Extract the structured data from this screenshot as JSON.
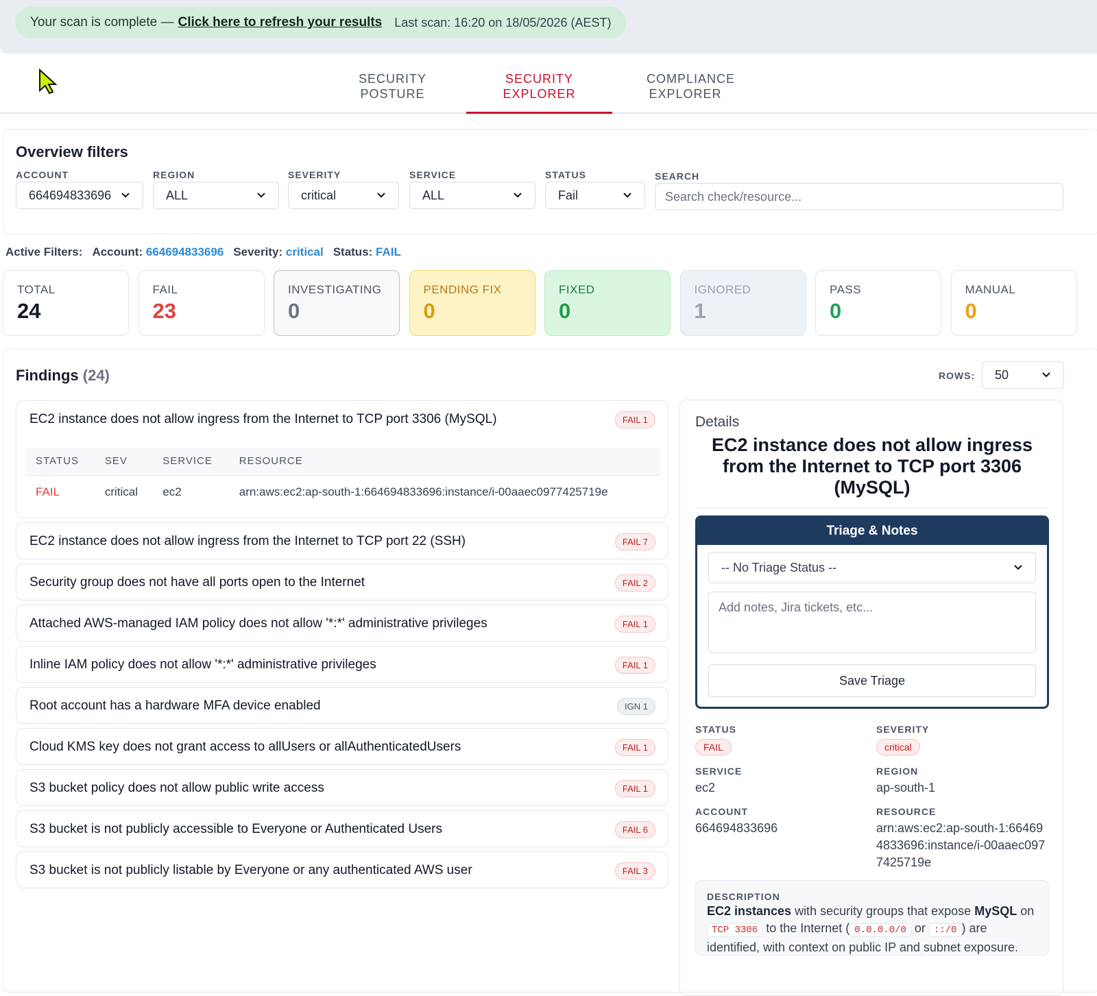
{
  "banner": {
    "message": "Your scan is complete —",
    "link": "Click here to refresh your results",
    "last_scan": "Last scan: 16:20 on 18/05/2026 (AEST)"
  },
  "tabs": [
    "SECURITY POSTURE",
    "SECURITY EXPLORER",
    "COMPLIANCE EXPLORER"
  ],
  "filters": {
    "title": "Overview filters",
    "fields": [
      {
        "label": "ACCOUNT",
        "value": "664694833696"
      },
      {
        "label": "REGION",
        "value": "ALL"
      },
      {
        "label": "SEVERITY",
        "value": "critical"
      },
      {
        "label": "SERVICE",
        "value": "ALL"
      },
      {
        "label": "STATUS",
        "value": "Fail"
      }
    ],
    "search": {
      "label": "SEARCH",
      "placeholder": "Search check/resource..."
    }
  },
  "active_filters": {
    "label": "Active Filters:",
    "items": [
      {
        "key": "Account:",
        "value": "664694833696"
      },
      {
        "key": "Severity:",
        "value": "critical"
      },
      {
        "key": "Status:",
        "value": "FAIL"
      }
    ]
  },
  "stats": [
    {
      "label": "TOTAL",
      "value": "24"
    },
    {
      "label": "FAIL",
      "value": "23"
    },
    {
      "label": "INVESTIGATING",
      "value": "0"
    },
    {
      "label": "PENDING FIX",
      "value": "0"
    },
    {
      "label": "FIXED",
      "value": "0"
    },
    {
      "label": "IGNORED",
      "value": "1"
    },
    {
      "label": "PASS",
      "value": "0"
    },
    {
      "label": "MANUAL",
      "value": "0"
    }
  ],
  "findings": {
    "title": "Findings",
    "count": "(24)",
    "rows_label": "ROWS:",
    "rows_value": "50",
    "items": [
      {
        "title": "EC2 instance does not allow ingress from the Internet to TCP port 3306 (MySQL)",
        "badge": "FAIL 1",
        "table": {
          "headers": [
            "STATUS",
            "SEV",
            "SERVICE",
            "RESOURCE"
          ],
          "rows": [
            [
              "FAIL",
              "critical",
              "ec2",
              "arn:aws:ec2:ap-south-1:664694833696:instance/i-00aaec0977425719e"
            ]
          ]
        }
      },
      {
        "title": "EC2 instance does not allow ingress from the Internet to TCP port 22 (SSH)",
        "badge": "FAIL 7"
      },
      {
        "title": "Security group does not have all ports open to the Internet",
        "badge": "FAIL 2"
      },
      {
        "title": "Attached AWS-managed IAM policy does not allow '*:*' administrative privileges",
        "badge": "FAIL 1"
      },
      {
        "title": "Inline IAM policy does not allow '*:*' administrative privileges",
        "badge": "FAIL 1"
      },
      {
        "title": "Root account has a hardware MFA device enabled",
        "badge": "IGN 1"
      },
      {
        "title": "Cloud KMS key does not grant access to allUsers or allAuthenticatedUsers",
        "badge": "FAIL 1"
      },
      {
        "title": "S3 bucket policy does not allow public write access",
        "badge": "FAIL 1"
      },
      {
        "title": "S3 bucket is not publicly accessible to Everyone or Authenticated Users",
        "badge": "FAIL 6"
      },
      {
        "title": "S3 bucket is not publicly listable by Everyone or any authenticated AWS user",
        "badge": "FAIL 3"
      }
    ]
  },
  "details": {
    "heading": "Details",
    "title": "EC2 instance does not allow ingress from the Internet to TCP port 3306 (MySQL)",
    "triage": {
      "header": "Triage & Notes",
      "status": "-- No Triage Status --",
      "notes_placeholder": "Add notes, Jira tickets, etc...",
      "button": "Save Triage"
    },
    "fields": [
      {
        "label": "STATUS",
        "value": "FAIL"
      },
      {
        "label": "SEVERITY",
        "value": "critical"
      },
      {
        "label": "SERVICE",
        "value": "ec2"
      },
      {
        "label": "REGION",
        "value": "ap-south-1"
      },
      {
        "label": "ACCOUNT",
        "value": "664694833696"
      },
      {
        "label": "RESOURCE",
        "value": "arn:aws:ec2:ap-south-1:664694833696:instance/i-00aaec0977425719e"
      }
    ],
    "description": {
      "label": "DESCRIPTION",
      "parts": [
        "EC2 instances",
        " with security groups that expose ",
        "MySQL",
        " on ",
        "TCP 3306",
        " to the Internet (",
        "0.0.0.0/0",
        " or ",
        "::/0",
        ") are identified, with context on public IP and subnet exposure."
      ]
    }
  }
}
